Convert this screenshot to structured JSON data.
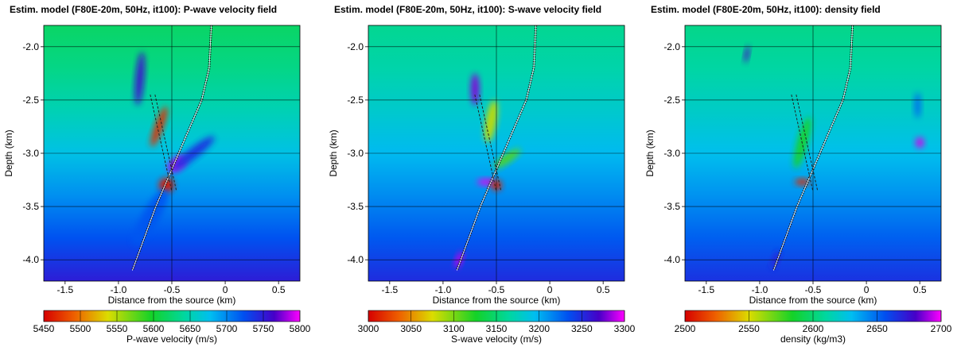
{
  "chart_data": [
    {
      "type": "heatmap",
      "title": "Estim. model (F80E-20m, 50Hz, it100): P-wave velocity field",
      "xlabel": "Distance from the source (km)",
      "ylabel": "Depth (km)",
      "xlim": [
        -1.7,
        0.7
      ],
      "ylim": [
        -4.2,
        -1.8
      ],
      "xticks": [
        "-1.5",
        "-1.0",
        "-0.5",
        "0",
        "0.5"
      ],
      "xtick_values": [
        -1.5,
        -1.0,
        -0.5,
        0,
        0.5
      ],
      "yticks": [
        "-2.0",
        "-2.5",
        "-3.0",
        "-3.5",
        "-4.0"
      ],
      "ytick_values": [
        -2.0,
        -2.5,
        -3.0,
        -3.5,
        -4.0
      ],
      "colorbar": {
        "label": "P-wave velocity (m/s)",
        "range": [
          5450,
          5800
        ],
        "ticks": [
          "5450",
          "5500",
          "5550",
          "5600",
          "5650",
          "5700",
          "5750",
          "5800"
        ]
      },
      "background": {
        "top": 5620,
        "bottom": 5750
      },
      "features": [
        {
          "x": -0.45,
          "y": -3.1,
          "value": 5790,
          "sx": 0.1,
          "sy": 0.06,
          "rot": -38
        },
        {
          "x": -0.55,
          "y": -3.3,
          "value": 5460,
          "sx": 0.07,
          "sy": 0.07,
          "rot": 0
        },
        {
          "x": -0.8,
          "y": -2.3,
          "value": 5760,
          "sx": 0.04,
          "sy": 0.25,
          "rot": 5
        },
        {
          "x": -0.62,
          "y": -2.75,
          "value": 5470,
          "sx": 0.04,
          "sy": 0.2,
          "rot": 20
        },
        {
          "x": -0.3,
          "y": -3.0,
          "value": 5740,
          "sx": 0.25,
          "sy": 0.05,
          "rot": -38
        },
        {
          "x": -0.7,
          "y": -3.6,
          "value": 5720,
          "sx": 0.08,
          "sy": 0.3,
          "rot": 30
        }
      ]
    },
    {
      "type": "heatmap",
      "title": "Estim. model (F80E-20m, 50Hz, it100): S-wave velocity field",
      "xlabel": "Distance from the source (km)",
      "ylabel": "Depth (km)",
      "xlim": [
        -1.7,
        0.7
      ],
      "ylim": [
        -4.2,
        -1.8
      ],
      "xticks": [
        "-1.5",
        "-1.0",
        "-0.5",
        "0",
        "0.5"
      ],
      "xtick_values": [
        -1.5,
        -1.0,
        -0.5,
        0,
        0.5
      ],
      "yticks": [
        "-2.0",
        "-2.5",
        "-3.0",
        "-3.5",
        "-4.0"
      ],
      "ytick_values": [
        -2.0,
        -2.5,
        -3.0,
        -3.5,
        -4.0
      ],
      "colorbar": {
        "label": "S-wave velocity (m/s)",
        "range": [
          3000,
          3300
        ],
        "ticks": [
          "3000",
          "3050",
          "3100",
          "3150",
          "3200",
          "3250",
          "3300"
        ]
      },
      "background": {
        "top": 3160,
        "bottom": 3250
      },
      "features": [
        {
          "x": -0.6,
          "y": -3.27,
          "value": 3295,
          "sx": 0.08,
          "sy": 0.03,
          "rot": 0
        },
        {
          "x": -0.5,
          "y": -3.3,
          "value": 3010,
          "sx": 0.05,
          "sy": 0.05,
          "rot": 0
        },
        {
          "x": -0.7,
          "y": -2.4,
          "value": 3280,
          "sx": 0.04,
          "sy": 0.15,
          "rot": 0
        },
        {
          "x": -0.55,
          "y": -2.7,
          "value": 3080,
          "sx": 0.05,
          "sy": 0.2,
          "rot": 10
        },
        {
          "x": -0.85,
          "y": -4.0,
          "value": 3290,
          "sx": 0.03,
          "sy": 0.08,
          "rot": 20
        },
        {
          "x": -0.4,
          "y": -3.05,
          "value": 3110,
          "sx": 0.15,
          "sy": 0.04,
          "rot": -35
        }
      ]
    },
    {
      "type": "heatmap",
      "title": "Estim. model (F80E-20m, 50Hz, it100): density field",
      "xlabel": "Distance from the source (km)",
      "ylabel": "Depth (km)",
      "xlim": [
        -1.7,
        0.7
      ],
      "ylim": [
        -4.2,
        -1.8
      ],
      "xticks": [
        "-1.5",
        "-1.0",
        "-0.5",
        "0",
        "0.5"
      ],
      "xtick_values": [
        -1.5,
        -1.0,
        -0.5,
        0,
        0.5
      ],
      "yticks": [
        "-2.0",
        "-2.5",
        "-3.0",
        "-3.5",
        "-4.0"
      ],
      "ytick_values": [
        -2.0,
        -2.5,
        -3.0,
        -3.5,
        -4.0
      ],
      "colorbar": {
        "label": "density (kg/m3)",
        "range": [
          2500,
          2700
        ],
        "ticks": [
          "2500",
          "2550",
          "2600",
          "2650",
          "2700"
        ]
      },
      "background": {
        "top": 2605,
        "bottom": 2665
      },
      "features": [
        {
          "x": -0.6,
          "y": -3.27,
          "value": 2510,
          "sx": 0.07,
          "sy": 0.03,
          "rot": 0
        },
        {
          "x": 0.5,
          "y": -2.9,
          "value": 2695,
          "sx": 0.04,
          "sy": 0.05,
          "rot": 0
        },
        {
          "x": -1.12,
          "y": -2.07,
          "value": 2680,
          "sx": 0.02,
          "sy": 0.08,
          "rot": 10
        },
        {
          "x": -0.85,
          "y": -4.0,
          "value": 2670,
          "sx": 0.03,
          "sy": 0.08,
          "rot": 20
        },
        {
          "x": -0.6,
          "y": -2.9,
          "value": 2585,
          "sx": 0.05,
          "sy": 0.25,
          "rot": 15
        },
        {
          "x": 0.48,
          "y": -2.55,
          "value": 2650,
          "sx": 0.03,
          "sy": 0.12,
          "rot": 0
        }
      ]
    }
  ],
  "well_track": {
    "points": [
      [
        -0.13,
        -1.8
      ],
      [
        -0.15,
        -2.2
      ],
      [
        -0.22,
        -2.5
      ],
      [
        -0.35,
        -2.8
      ],
      [
        -0.5,
        -3.15
      ],
      [
        -0.65,
        -3.5
      ],
      [
        -0.87,
        -4.1
      ]
    ]
  },
  "target_zone": {
    "points": [
      [
        -0.68,
        -2.45
      ],
      [
        -0.48,
        -3.35
      ]
    ]
  }
}
